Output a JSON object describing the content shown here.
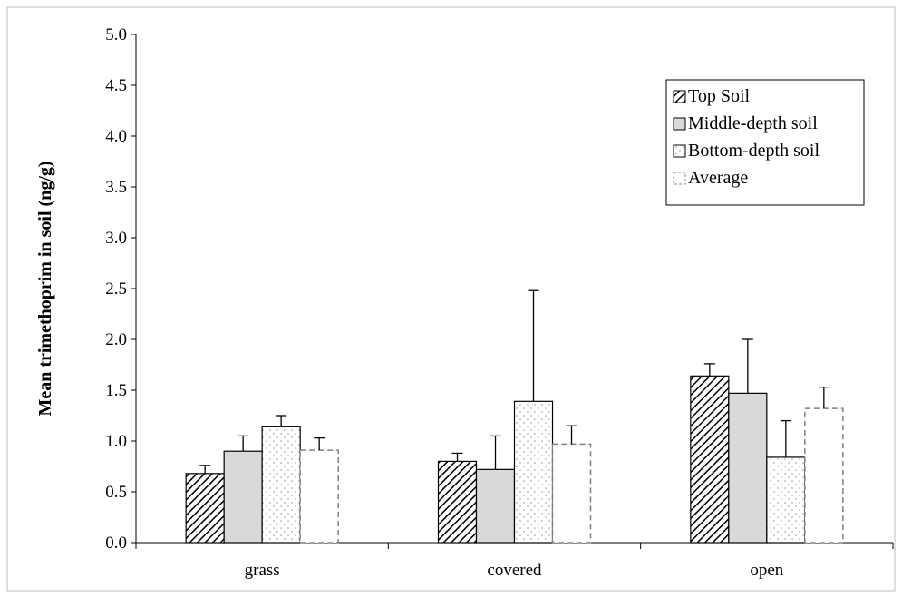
{
  "chart_data": {
    "type": "bar",
    "title": "",
    "xlabel": "",
    "ylabel": "Mean trimethoprim in soil (ng/g)",
    "ylim": [
      0,
      5.0
    ],
    "ytick_step": 0.5,
    "grid": false,
    "legend_position": "top-right",
    "categories": [
      "grass",
      "covered",
      "open"
    ],
    "series": [
      {
        "name": "Top Soil",
        "pattern": "diagonal-hatch",
        "color": "#000000",
        "values": [
          0.68,
          0.8,
          1.64
        ],
        "errors": [
          0.08,
          0.08,
          0.12
        ]
      },
      {
        "name": "Middle-depth soil",
        "pattern": "solid-gray",
        "color": "#d9d9d9",
        "values": [
          0.9,
          0.72,
          1.47
        ],
        "errors": [
          0.15,
          0.33,
          0.53
        ]
      },
      {
        "name": "Bottom-depth soil",
        "pattern": "dots",
        "color": "#ffffff",
        "values": [
          1.14,
          1.39,
          0.84
        ],
        "errors": [
          0.11,
          1.09,
          0.36
        ]
      },
      {
        "name": "Average",
        "pattern": "dashed-outline",
        "color": "#808080",
        "values": [
          0.91,
          0.97,
          1.32
        ],
        "errors": [
          0.12,
          0.18,
          0.21
        ]
      }
    ]
  }
}
